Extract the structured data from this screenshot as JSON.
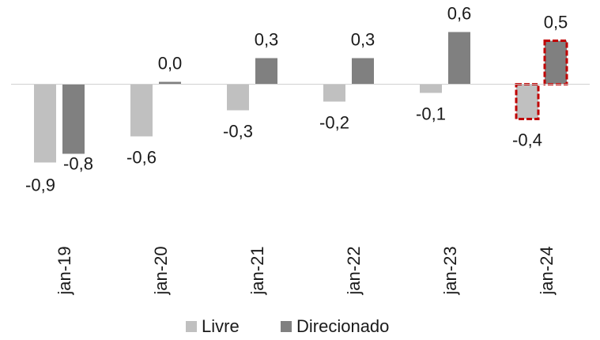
{
  "chart_data": {
    "type": "bar",
    "categories": [
      "jan-19",
      "jan-20",
      "jan-21",
      "jan-22",
      "jan-23",
      "jan-24"
    ],
    "series": [
      {
        "name": "Livre",
        "values": [
          -0.9,
          -0.6,
          -0.3,
          -0.2,
          -0.1,
          -0.4
        ],
        "labels": [
          "-0,9",
          "-0,6",
          "-0,3",
          "-0,2",
          "-0,1",
          "-0,4"
        ],
        "color": "#c0c0c0"
      },
      {
        "name": "Direcionado",
        "values": [
          -0.8,
          0.0,
          0.3,
          0.3,
          0.6,
          0.5
        ],
        "labels": [
          "-0,8",
          "0,0",
          "0,3",
          "0,3",
          "0,6",
          "0,5"
        ],
        "color": "#808080"
      }
    ],
    "highlight": {
      "category": "jan-24",
      "style": "dashed",
      "color": "#c00000"
    },
    "title": "",
    "xlabel": "",
    "ylabel": "",
    "ylim": [
      -0.9,
      0.6
    ],
    "grid": false,
    "legend": "bottom",
    "x_tick_rotation": -90
  }
}
